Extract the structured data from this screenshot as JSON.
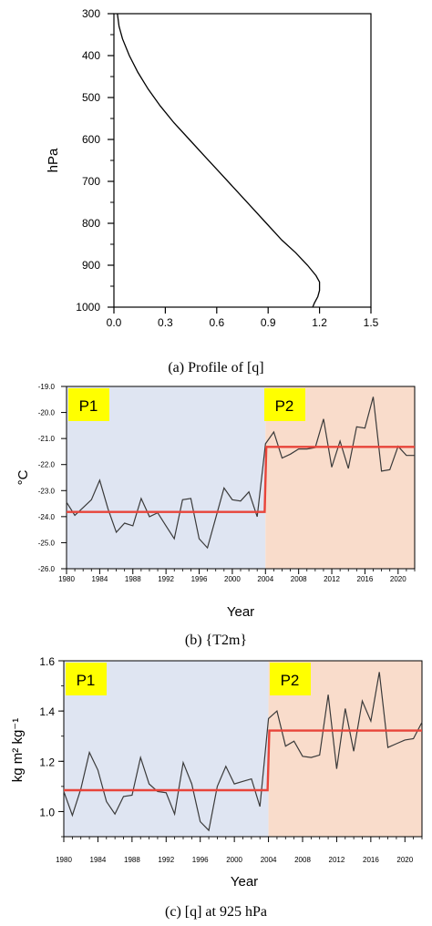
{
  "colors": {
    "p1_background": "#dfe5f2",
    "p2_background": "#f9dccb",
    "period_label_background": "#ffff00",
    "series_line": "#3a3a3a",
    "mean_line": "#e8443a"
  },
  "chart_data": [
    {
      "type": "line",
      "caption": "(a)  Profile  of  [q]",
      "xlabel": "",
      "ylabel": "hPa",
      "xlim": [
        0.0,
        1.5
      ],
      "ylim": [
        1000,
        300
      ],
      "xticks": [
        "0.0",
        "0.3",
        "0.6",
        "0.9",
        "1.2",
        "1.5"
      ],
      "yticks": [
        "300",
        "400",
        "500",
        "600",
        "700",
        "800",
        "900",
        "1000"
      ],
      "series": [
        {
          "x": [
            0.02,
            0.03,
            0.05,
            0.09,
            0.14,
            0.2,
            0.27,
            0.35,
            0.44,
            0.53,
            0.62,
            0.71,
            0.8,
            0.89,
            0.98,
            1.06,
            1.13,
            1.18,
            1.2,
            1.2,
            1.19,
            1.17,
            1.16
          ],
          "y": [
            300,
            330,
            360,
            400,
            440,
            480,
            520,
            560,
            600,
            640,
            680,
            720,
            760,
            800,
            840,
            870,
            900,
            925,
            940,
            960,
            975,
            990,
            1000
          ]
        }
      ]
    },
    {
      "type": "line",
      "caption": "(b)  {T2m}",
      "xlabel": "Year",
      "ylabel": "°C",
      "xlim": [
        1980,
        2022
      ],
      "ylim": [
        -26.0,
        -19.0
      ],
      "xticks": [
        "1980",
        "1984",
        "1988",
        "1992",
        "1996",
        "2000",
        "2004",
        "2008",
        "2012",
        "2016",
        "2020"
      ],
      "yticks": [
        "-19.0",
        "-20.0",
        "-21.0",
        "-22.0",
        "-23.0",
        "-24.0",
        "-25.0",
        "-26.0"
      ],
      "periods": [
        {
          "label": "P1",
          "start": 1980,
          "end": 2004
        },
        {
          "label": "P2",
          "start": 2004,
          "end": 2022
        }
      ],
      "series": [
        {
          "x": [
            1980,
            1981,
            1982,
            1983,
            1984,
            1985,
            1986,
            1987,
            1988,
            1989,
            1990,
            1991,
            1992,
            1993,
            1994,
            1995,
            1996,
            1997,
            1998,
            1999,
            2000,
            2001,
            2002,
            2003,
            2004,
            2005,
            2006,
            2007,
            2008,
            2009,
            2010,
            2011,
            2012,
            2013,
            2014,
            2015,
            2016,
            2017,
            2018,
            2019,
            2020,
            2021,
            2022
          ],
          "values": [
            -23.45,
            -23.95,
            -23.65,
            -23.35,
            -22.6,
            -23.7,
            -24.6,
            -24.25,
            -24.35,
            -23.3,
            -24.0,
            -23.85,
            -24.35,
            -24.85,
            -23.35,
            -23.3,
            -24.85,
            -25.2,
            -24.05,
            -22.9,
            -23.35,
            -23.4,
            -23.05,
            -24.0,
            -21.2,
            -20.75,
            -21.75,
            -21.6,
            -21.4,
            -21.4,
            -21.35,
            -20.25,
            -22.1,
            -21.1,
            -22.15,
            -20.55,
            -20.6,
            -19.4,
            -22.25,
            -22.2,
            -21.3,
            -21.65,
            -21.65
          ]
        }
      ],
      "period_means": [
        {
          "label": "P1",
          "value": -23.82
        },
        {
          "label": "P2",
          "value": -21.32
        }
      ]
    },
    {
      "type": "line",
      "caption": "(c)  [q]  at  925  hPa",
      "xlabel": "Year",
      "ylabel": "kg m² kg⁻¹",
      "xlim": [
        1980,
        2022
      ],
      "ylim": [
        0.9,
        1.6
      ],
      "xticks": [
        "1980",
        "1984",
        "1988",
        "1992",
        "1996",
        "2000",
        "2004",
        "2008",
        "2012",
        "2016",
        "2020"
      ],
      "yticks": [
        "1.0",
        "1.2",
        "1.4",
        "1.6"
      ],
      "periods": [
        {
          "label": "P1",
          "start": 1980,
          "end": 2004
        },
        {
          "label": "P2",
          "start": 2004,
          "end": 2022
        }
      ],
      "series": [
        {
          "x": [
            1980,
            1981,
            1982,
            1983,
            1984,
            1985,
            1986,
            1987,
            1988,
            1989,
            1990,
            1991,
            1992,
            1993,
            1994,
            1995,
            1996,
            1997,
            1998,
            1999,
            2000,
            2001,
            2002,
            2003,
            2004,
            2005,
            2006,
            2007,
            2008,
            2009,
            2010,
            2011,
            2012,
            2013,
            2014,
            2015,
            2016,
            2017,
            2018,
            2019,
            2020,
            2021,
            2022
          ],
          "values": [
            1.08,
            0.985,
            1.09,
            1.235,
            1.165,
            1.04,
            0.99,
            1.06,
            1.065,
            1.215,
            1.11,
            1.08,
            1.075,
            0.99,
            1.195,
            1.11,
            0.96,
            0.925,
            1.1,
            1.18,
            1.11,
            1.12,
            1.13,
            1.02,
            1.37,
            1.4,
            1.26,
            1.28,
            1.22,
            1.215,
            1.225,
            1.465,
            1.17,
            1.41,
            1.24,
            1.44,
            1.36,
            1.555,
            1.255,
            1.27,
            1.285,
            1.29,
            1.355
          ]
        }
      ],
      "period_means": [
        {
          "label": "P1",
          "value": 1.085
        },
        {
          "label": "P2",
          "value": 1.322
        }
      ]
    }
  ]
}
